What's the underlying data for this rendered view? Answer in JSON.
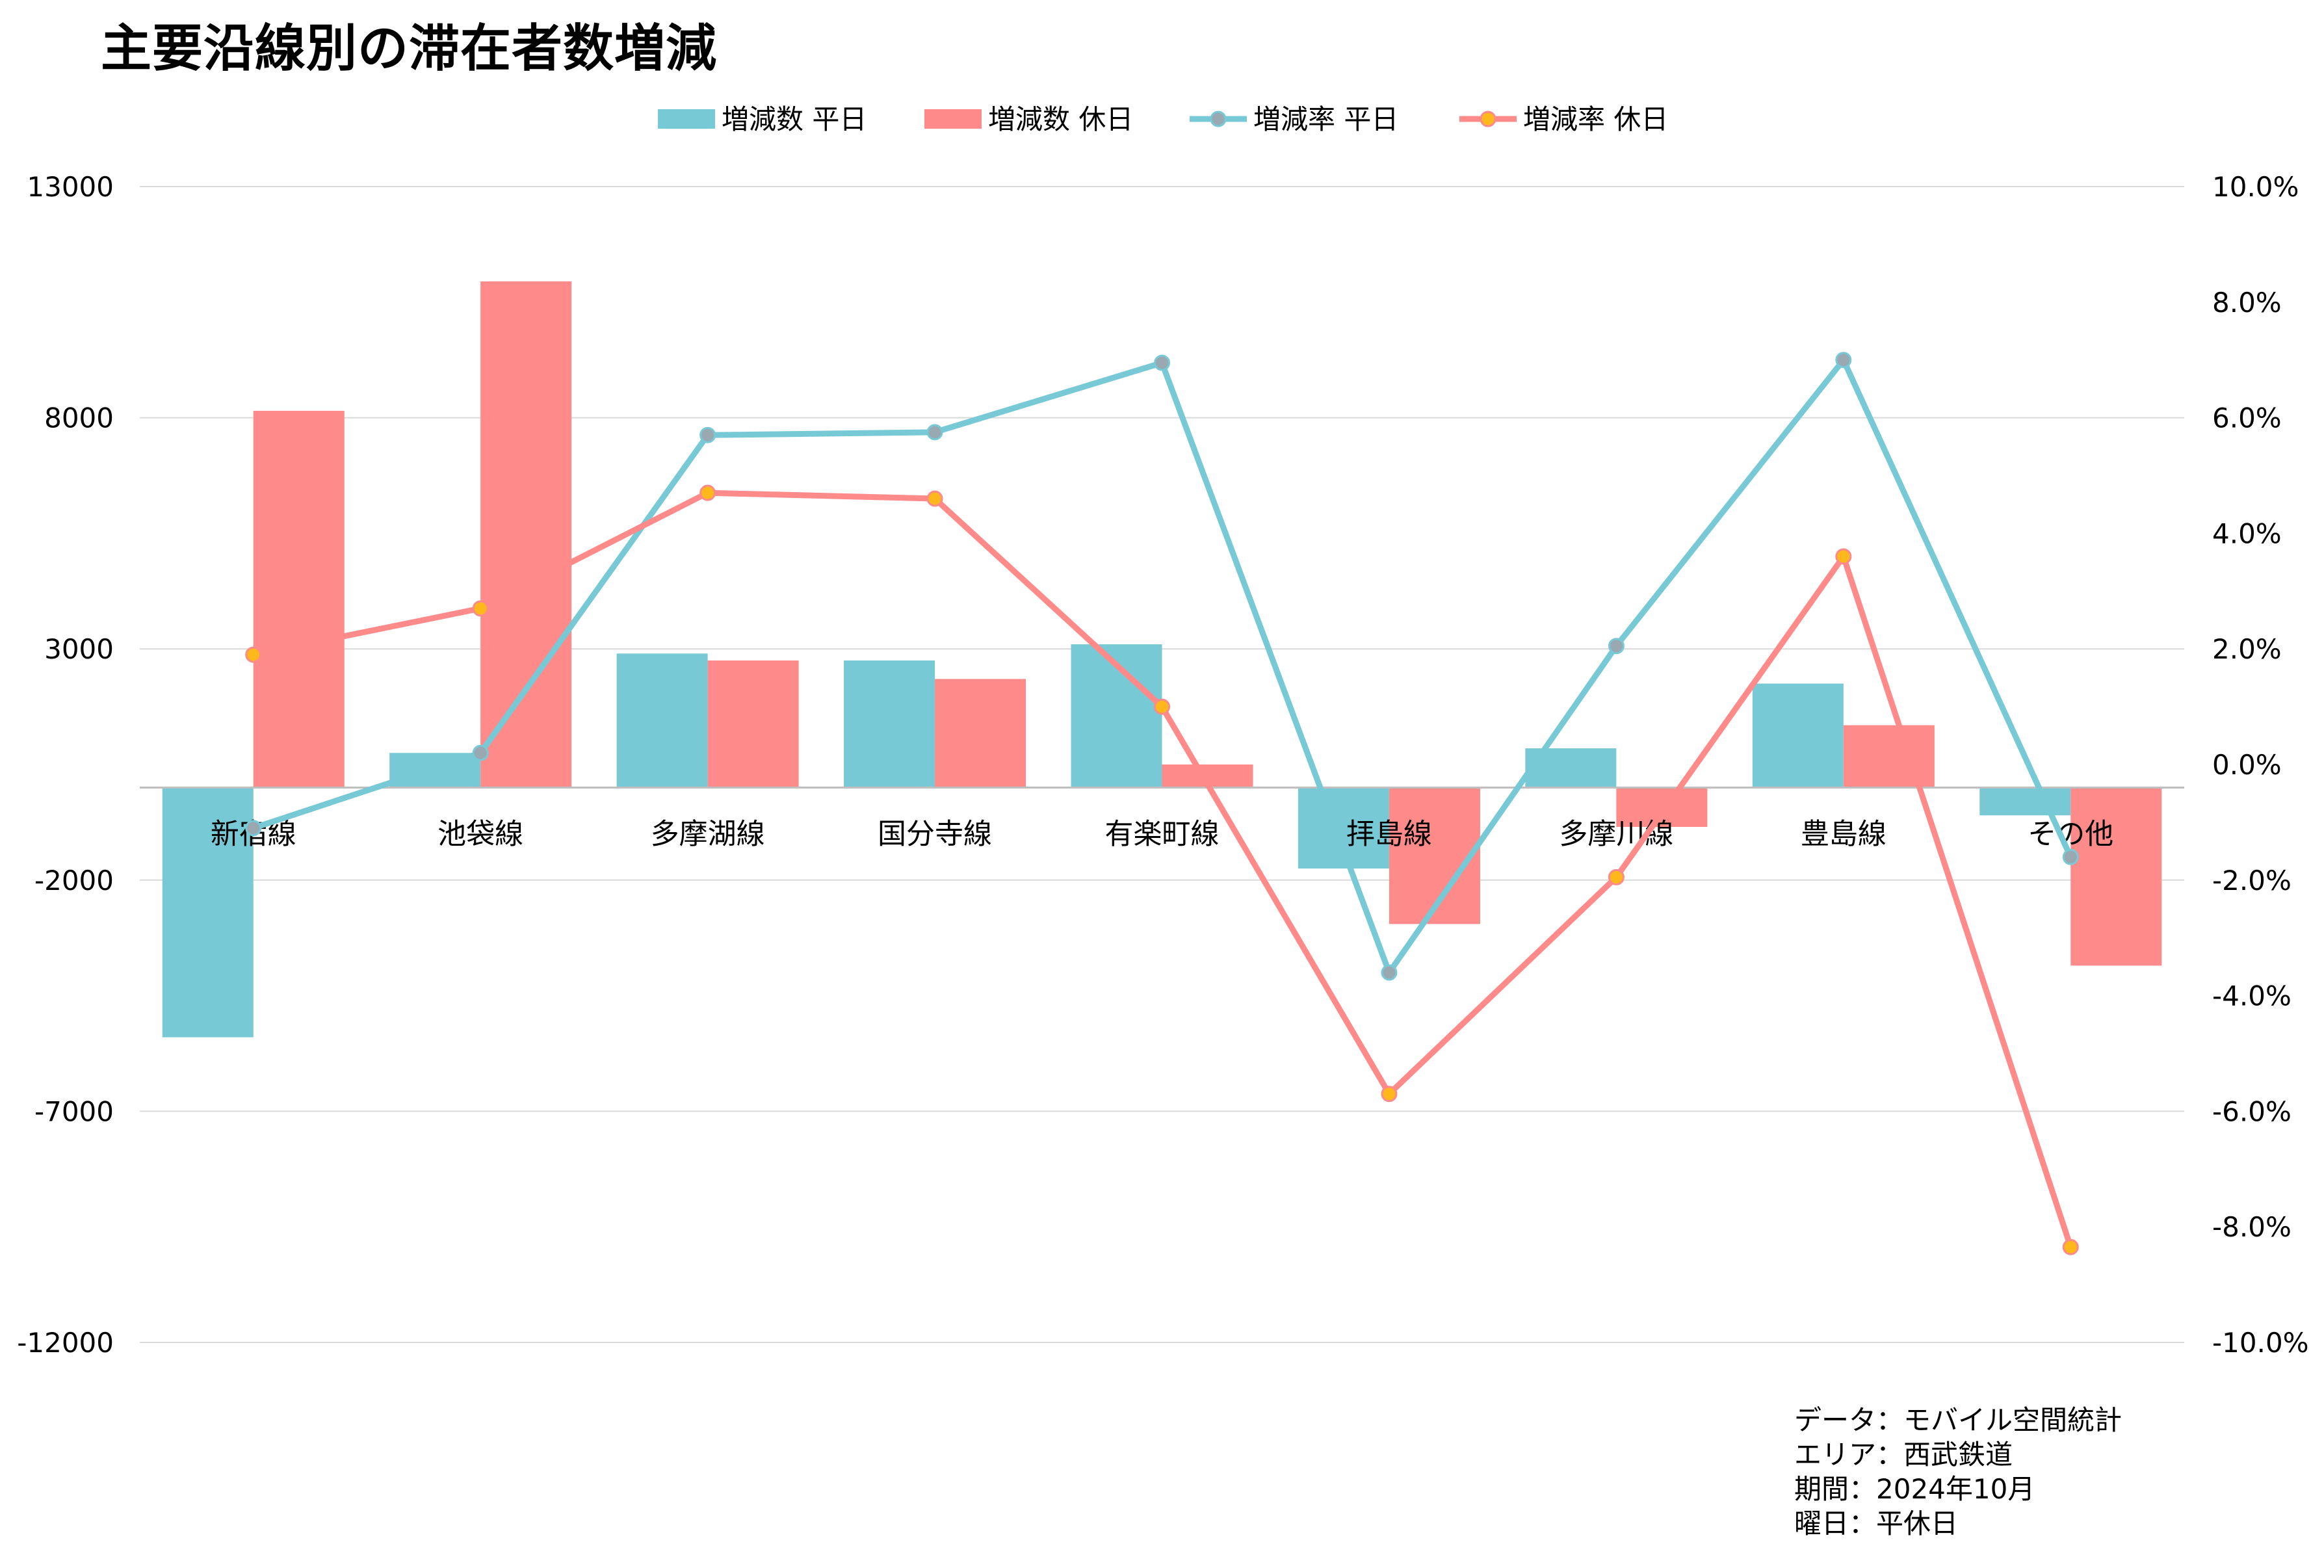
{
  "title": "主要沿線別の滞在者数増減",
  "colors": {
    "weekday_bar": "#78C9D6",
    "holiday_bar": "#FF8A8A",
    "weekday_line": "#78C9D6",
    "holiday_line": "#FF8A8A",
    "weekday_marker": "#9AA8B2",
    "holiday_marker": "#FFB81C",
    "grid": "#D9D9D9"
  },
  "chart_data": {
    "type": "bar+line",
    "categories": [
      "新宿線",
      "池袋線",
      "多摩湖線",
      "国分寺線",
      "有楽町線",
      "拝島線",
      "多摩川線",
      "豊島線",
      "その他"
    ],
    "series": [
      {
        "name": "増減数 平日",
        "kind": "bar",
        "axis": "left",
        "values": [
          -5400,
          750,
          2900,
          2750,
          3100,
          -1750,
          850,
          2250,
          -600
        ]
      },
      {
        "name": "増減数 休日",
        "kind": "bar",
        "axis": "left",
        "values": [
          8150,
          10950,
          2750,
          2350,
          500,
          -2950,
          -850,
          1350,
          -3850
        ]
      },
      {
        "name": "増減率 平日",
        "kind": "line",
        "axis": "right",
        "values": [
          -1.1,
          0.2,
          5.7,
          5.75,
          6.95,
          -3.6,
          2.05,
          7.0,
          -1.6
        ]
      },
      {
        "name": "増減率 休日",
        "kind": "line",
        "axis": "right",
        "values": [
          1.9,
          2.7,
          4.7,
          4.6,
          1.0,
          -5.7,
          -1.95,
          3.6,
          -8.35
        ]
      }
    ],
    "y_left": {
      "min": -12000,
      "max": 13000,
      "ticks": [
        "13000",
        "8000",
        "3000",
        "-2000",
        "-7000",
        "-12000"
      ]
    },
    "y_right": {
      "min": -10,
      "max": 10,
      "ticks": [
        "10.0%",
        "8.0%",
        "6.0%",
        "4.0%",
        "2.0%",
        "0.0%",
        "-2.0%",
        "-4.0%",
        "-6.0%",
        "-8.0%",
        "-10.0%"
      ]
    },
    "grid": true,
    "legend_position": "top"
  },
  "footnotes": [
    "データ：モバイル空間統計",
    "エリア：西武鉄道",
    "期間：2024年10月",
    "曜日：平休日"
  ]
}
